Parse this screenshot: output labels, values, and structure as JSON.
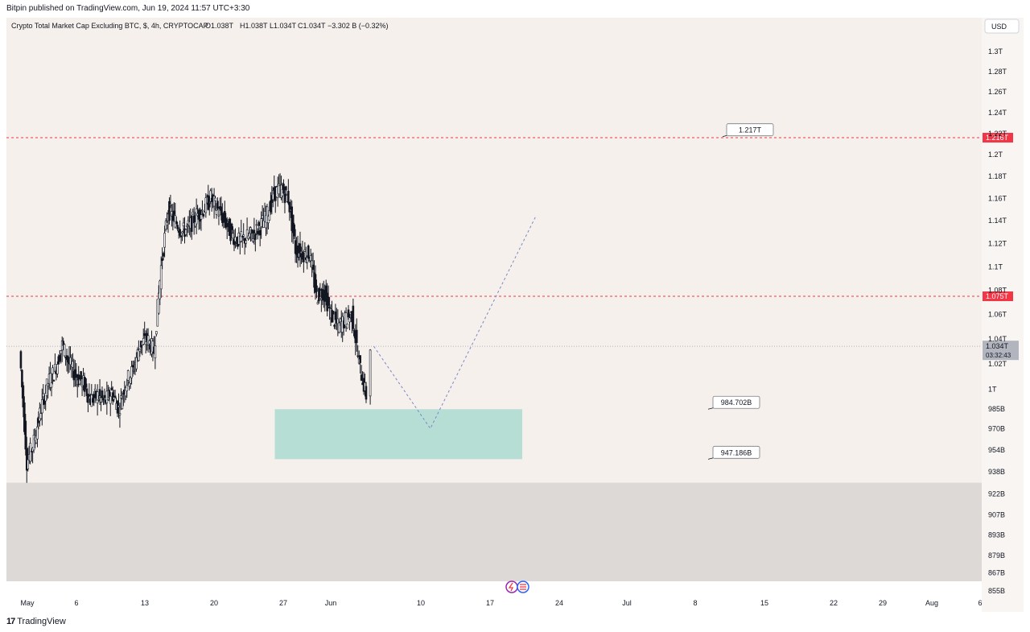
{
  "header": {
    "published_text": "Bitpin published on TradingView.com, Jun 19, 2024 11:57 UTC+3:30"
  },
  "chart_info": {
    "title_line": "Crypto Total Market Cap Excluding BTC, $, 4h, CRYPTOCAP",
    "open": "O1.038T",
    "high": "H1.038T",
    "low": "L1.034T",
    "close": "C1.034T",
    "change": "−3.302 B (−0.32%)"
  },
  "currency_button": "USD",
  "footer": {
    "brand": "TradingView"
  },
  "colors": {
    "background": "#f5f0eb",
    "candle": "#131722",
    "red_line": "#f23645",
    "zone_green": "#a6d8cd",
    "zone_gray": "#dcd9d6",
    "projection": "#7b86c9"
  },
  "chart_data": {
    "type": "candlestick",
    "title": "Crypto Total Market Cap Excluding BTC, $, 4h, CRYPTOCAP",
    "x_labels": [
      "May",
      "6",
      "13",
      "20",
      "27",
      "Jun",
      "10",
      "17",
      "24",
      "Jul",
      "8",
      "15",
      "22",
      "29",
      "Aug",
      "6"
    ],
    "y_tick_labels": [
      "1.3T",
      "1.28T",
      "1.26T",
      "1.24T",
      "1.22T",
      "1.2T",
      "1.18T",
      "1.16T",
      "1.14T",
      "1.12T",
      "1.1T",
      "1.08T",
      "1.06T",
      "1.04T",
      "1.02T",
      "1T",
      "985B",
      "970B",
      "954B",
      "938B",
      "922B",
      "907B",
      "893B",
      "879B",
      "867B",
      "855B"
    ],
    "y_tick_values": [
      1300,
      1280,
      1260,
      1240,
      1220,
      1200,
      1180,
      1160,
      1140,
      1120,
      1100,
      1080,
      1060,
      1040,
      1020,
      1000,
      985,
      970,
      954,
      938,
      922,
      907,
      893,
      879,
      867,
      855
    ],
    "y_unit": "B",
    "y_scale": "log",
    "ylim": [
      855,
      1310
    ],
    "price_series": [
      {
        "date": "2024-04-30",
        "value": 1030
      },
      {
        "date": "2024-05-01",
        "value": 945
      },
      {
        "date": "2024-05-02",
        "value": 960
      },
      {
        "date": "2024-05-03",
        "value": 985
      },
      {
        "date": "2024-05-04",
        "value": 1005
      },
      {
        "date": "2024-05-05",
        "value": 1015
      },
      {
        "date": "2024-05-06",
        "value": 1035
      },
      {
        "date": "2024-05-07",
        "value": 1020
      },
      {
        "date": "2024-05-08",
        "value": 1010
      },
      {
        "date": "2024-05-09",
        "value": 1005
      },
      {
        "date": "2024-05-10",
        "value": 992
      },
      {
        "date": "2024-05-11",
        "value": 995
      },
      {
        "date": "2024-05-12",
        "value": 990
      },
      {
        "date": "2024-05-13",
        "value": 998
      },
      {
        "date": "2024-05-14",
        "value": 985
      },
      {
        "date": "2024-05-15",
        "value": 1005
      },
      {
        "date": "2024-05-16",
        "value": 1015
      },
      {
        "date": "2024-05-17",
        "value": 1035
      },
      {
        "date": "2024-05-18",
        "value": 1040
      },
      {
        "date": "2024-05-19",
        "value": 1030
      },
      {
        "date": "2024-05-20",
        "value": 1100
      },
      {
        "date": "2024-05-21",
        "value": 1150
      },
      {
        "date": "2024-05-22",
        "value": 1140
      },
      {
        "date": "2024-05-23",
        "value": 1130
      },
      {
        "date": "2024-05-24",
        "value": 1135
      },
      {
        "date": "2024-05-25",
        "value": 1145
      },
      {
        "date": "2024-05-26",
        "value": 1150
      },
      {
        "date": "2024-05-27",
        "value": 1160
      },
      {
        "date": "2024-05-28",
        "value": 1150
      },
      {
        "date": "2024-05-29",
        "value": 1140
      },
      {
        "date": "2024-05-30",
        "value": 1128
      },
      {
        "date": "2024-05-31",
        "value": 1122
      },
      {
        "date": "2024-06-01",
        "value": 1125
      },
      {
        "date": "2024-06-02",
        "value": 1128
      },
      {
        "date": "2024-06-03",
        "value": 1135
      },
      {
        "date": "2024-06-04",
        "value": 1145
      },
      {
        "date": "2024-06-05",
        "value": 1165
      },
      {
        "date": "2024-06-06",
        "value": 1168
      },
      {
        "date": "2024-06-07",
        "value": 1160
      },
      {
        "date": "2024-06-08",
        "value": 1115
      },
      {
        "date": "2024-06-09",
        "value": 1112
      },
      {
        "date": "2024-06-10",
        "value": 1110
      },
      {
        "date": "2024-06-11",
        "value": 1075
      },
      {
        "date": "2024-06-12",
        "value": 1080
      },
      {
        "date": "2024-06-13",
        "value": 1060
      },
      {
        "date": "2024-06-14",
        "value": 1050
      },
      {
        "date": "2024-06-15",
        "value": 1055
      },
      {
        "date": "2024-06-16",
        "value": 1060
      },
      {
        "date": "2024-06-17",
        "value": 1020
      },
      {
        "date": "2024-06-18",
        "value": 995
      },
      {
        "date": "2024-06-19",
        "value": 1034
      }
    ],
    "horizontal_lines": [
      {
        "value": 1216,
        "label": "1.216T",
        "style": "dashed",
        "color": "#f23645"
      },
      {
        "value": 1075,
        "label": "1.075T",
        "style": "dashed",
        "color": "#f23645"
      }
    ],
    "current_price": {
      "value": 1034,
      "label": "1.034T",
      "countdown": "03:32:43"
    },
    "zones": [
      {
        "name": "support-zone",
        "from": 947.186,
        "to": 984.702,
        "start": "2024-06-05",
        "end": "2024-07-10",
        "color": "#a6d8cd"
      },
      {
        "name": "gray-zone",
        "from": 855,
        "to": 930,
        "color": "#dcd9d6"
      }
    ],
    "callouts": [
      {
        "label": "1.217T",
        "value": 1217
      },
      {
        "label": "984.702B",
        "value": 984.702
      },
      {
        "label": "947.186B",
        "value": 947.186
      }
    ],
    "projection_path": [
      {
        "date": "2024-06-19",
        "value": 1034
      },
      {
        "date": "2024-06-27",
        "value": 970
      },
      {
        "date": "2024-07-12",
        "value": 1145
      }
    ]
  }
}
